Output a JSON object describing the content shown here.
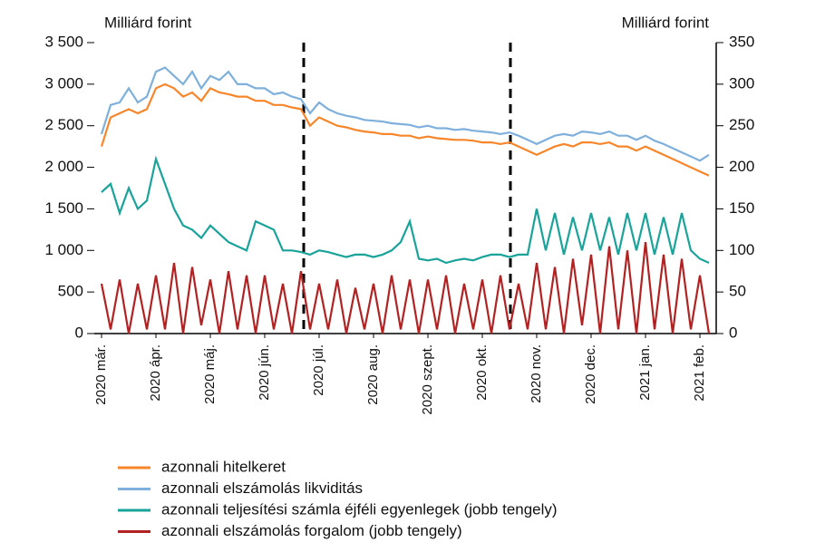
{
  "chart_data": {
    "type": "line",
    "y_label": "Milliárd forint",
    "y2_label": "Milliárd forint",
    "categories": [
      "2020 már.",
      null,
      null,
      null,
      null,
      null,
      "2020 ápr.",
      null,
      null,
      null,
      null,
      null,
      "2020 máj.",
      null,
      null,
      null,
      null,
      null,
      "2020 jún.",
      null,
      null,
      null,
      null,
      null,
      "2020 júl.",
      null,
      null,
      null,
      null,
      null,
      "2020 aug.",
      null,
      null,
      null,
      null,
      null,
      "2020 szept.",
      null,
      null,
      null,
      null,
      null,
      "2020 okt.",
      null,
      null,
      null,
      null,
      null,
      "2020 nov.",
      null,
      null,
      null,
      null,
      null,
      "2020 dec.",
      null,
      null,
      null,
      null,
      null,
      "2021 jan.",
      null,
      null,
      null,
      null,
      null,
      "2021 feb.",
      null
    ],
    "ylim": [
      0,
      3500
    ],
    "yticks": [
      {
        "value": 0,
        "label": "0"
      },
      {
        "value": 500,
        "label": "500"
      },
      {
        "value": 1000,
        "label": "1 000"
      },
      {
        "value": 1500,
        "label": "1 500"
      },
      {
        "value": 2000,
        "label": "2 000"
      },
      {
        "value": 2500,
        "label": "2 500"
      },
      {
        "value": 3000,
        "label": "3 000"
      },
      {
        "value": 3500,
        "label": "3 500"
      }
    ],
    "y2lim": [
      0,
      350
    ],
    "y2ticks": [
      0,
      50,
      100,
      150,
      200,
      250,
      300,
      350
    ],
    "series": [
      {
        "name": "azonnali hitelkeret",
        "color": "#f7862b",
        "values": [
          2250,
          2600,
          2650,
          2700,
          2650,
          2700,
          2950,
          3000,
          2950,
          2850,
          2900,
          2800,
          2950,
          2900,
          2880,
          2850,
          2850,
          2800,
          2800,
          2750,
          2750,
          2720,
          2700,
          2500,
          2600,
          2550,
          2500,
          2480,
          2450,
          2430,
          2420,
          2400,
          2400,
          2380,
          2380,
          2350,
          2370,
          2350,
          2340,
          2330,
          2330,
          2320,
          2300,
          2300,
          2280,
          2300,
          2250,
          2200,
          2150,
          2200,
          2250,
          2280,
          2250,
          2300,
          2300,
          2280,
          2300,
          2250,
          2250,
          2200,
          2250,
          2200,
          2150,
          2100,
          2050,
          2000,
          1950,
          1900
        ]
      },
      {
        "name": "azonnali elszámolás likviditás",
        "color": "#7fb0dc",
        "values": [
          2400,
          2750,
          2780,
          2950,
          2780,
          2850,
          3150,
          3200,
          3100,
          3000,
          3150,
          2950,
          3100,
          3050,
          3150,
          3000,
          3000,
          2950,
          2950,
          2880,
          2900,
          2850,
          2820,
          2650,
          2780,
          2700,
          2650,
          2620,
          2600,
          2570,
          2560,
          2550,
          2530,
          2520,
          2510,
          2480,
          2500,
          2470,
          2470,
          2450,
          2460,
          2440,
          2430,
          2420,
          2400,
          2420,
          2380,
          2330,
          2280,
          2330,
          2380,
          2400,
          2380,
          2430,
          2420,
          2400,
          2430,
          2380,
          2380,
          2330,
          2380,
          2320,
          2280,
          2230,
          2180,
          2130,
          2080,
          2150
        ]
      },
      {
        "name": "azonnali teljesítési számla éjféli egyenlegek (jobb tengely)",
        "color": "#1aa39a",
        "axis": "y2",
        "values": [
          170,
          180,
          145,
          175,
          150,
          160,
          210,
          180,
          150,
          130,
          125,
          115,
          130,
          120,
          110,
          105,
          100,
          135,
          130,
          125,
          100,
          100,
          98,
          95,
          100,
          98,
          95,
          92,
          95,
          95,
          92,
          95,
          100,
          110,
          135,
          90,
          88,
          90,
          85,
          88,
          90,
          88,
          92,
          95,
          95,
          92,
          95,
          95,
          150,
          100,
          145,
          95,
          140,
          100,
          145,
          100,
          140,
          95,
          145,
          100,
          145,
          95,
          140,
          95,
          145,
          100,
          90,
          85
        ]
      },
      {
        "name": "azonnali elszámolás forgalom (jobb tengely)",
        "color": "#b22222",
        "axis": "y2",
        "values": [
          60,
          5,
          65,
          0,
          60,
          5,
          70,
          5,
          85,
          0,
          80,
          10,
          65,
          0,
          75,
          5,
          70,
          0,
          70,
          5,
          60,
          0,
          75,
          5,
          60,
          5,
          65,
          0,
          55,
          5,
          60,
          0,
          70,
          5,
          65,
          0,
          65,
          5,
          70,
          0,
          60,
          5,
          65,
          0,
          70,
          5,
          60,
          5,
          85,
          5,
          80,
          0,
          90,
          10,
          95,
          0,
          105,
          5,
          100,
          0,
          110,
          5,
          95,
          0,
          90,
          5,
          70,
          0
        ]
      }
    ]
  }
}
